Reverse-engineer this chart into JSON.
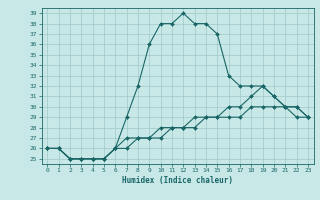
{
  "title": "",
  "xlabel": "Humidex (Indice chaleur)",
  "ylabel": "",
  "xlim": [
    -0.5,
    23.5
  ],
  "ylim": [
    24.5,
    39.5
  ],
  "yticks": [
    25,
    26,
    27,
    28,
    29,
    30,
    31,
    32,
    33,
    34,
    35,
    36,
    37,
    38,
    39
  ],
  "xticks": [
    0,
    1,
    2,
    3,
    4,
    5,
    6,
    7,
    8,
    9,
    10,
    11,
    12,
    13,
    14,
    15,
    16,
    17,
    18,
    19,
    20,
    21,
    22,
    23
  ],
  "bg_color": "#c8e8e8",
  "grid_color": "#a0c8c8",
  "line_color": "#1a6666",
  "lines": [
    {
      "x": [
        0,
        1,
        2,
        3,
        4,
        5,
        6,
        7,
        8,
        9,
        10,
        11,
        12,
        13,
        14,
        15,
        16,
        17,
        18,
        19,
        20,
        21,
        22,
        23
      ],
      "y": [
        26,
        26,
        25,
        25,
        25,
        25,
        26,
        29,
        32,
        36,
        38,
        38,
        39,
        38,
        38,
        37,
        33,
        32,
        32,
        32,
        31,
        30,
        29,
        29
      ]
    },
    {
      "x": [
        0,
        1,
        2,
        3,
        4,
        5,
        6,
        7,
        8,
        9,
        10,
        11,
        12,
        13,
        14,
        15,
        16,
        17,
        18,
        19,
        20,
        21,
        22,
        23
      ],
      "y": [
        26,
        26,
        25,
        25,
        25,
        25,
        26,
        27,
        27,
        27,
        28,
        28,
        28,
        29,
        29,
        29,
        30,
        30,
        31,
        32,
        31,
        30,
        30,
        29
      ]
    },
    {
      "x": [
        0,
        1,
        2,
        3,
        4,
        5,
        6,
        7,
        8,
        9,
        10,
        11,
        12,
        13,
        14,
        15,
        16,
        17,
        18,
        19,
        20,
        21,
        22,
        23
      ],
      "y": [
        26,
        26,
        25,
        25,
        25,
        25,
        26,
        26,
        27,
        27,
        27,
        28,
        28,
        28,
        29,
        29,
        29,
        29,
        30,
        30,
        30,
        30,
        30,
        29
      ]
    }
  ]
}
